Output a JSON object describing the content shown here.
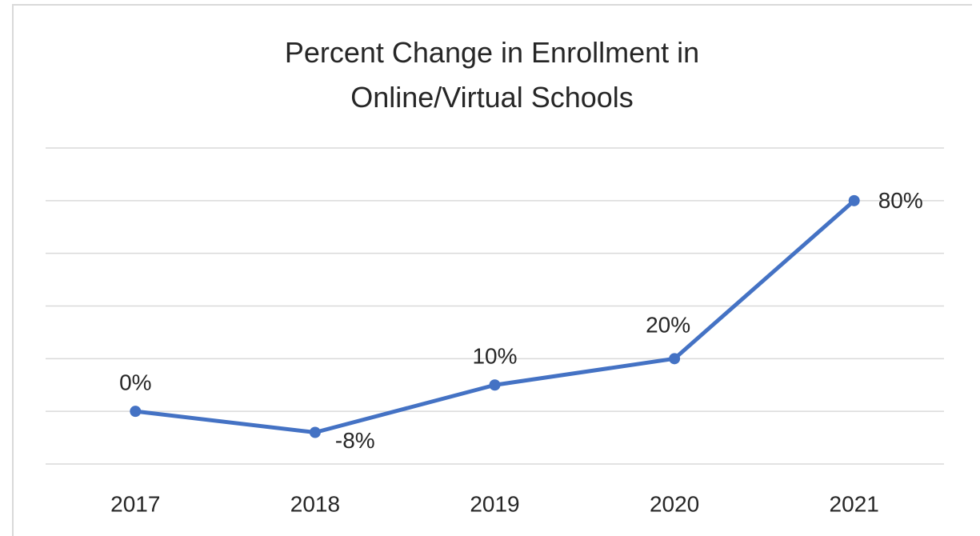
{
  "chart_data": {
    "type": "line",
    "title": "Percent Change in Enrollment in Online/Virtual Schools",
    "categories": [
      "2017",
      "2018",
      "2019",
      "2020",
      "2021"
    ],
    "values": [
      0,
      -8,
      10,
      20,
      80
    ],
    "value_labels": [
      "0%",
      "-8%",
      "10%",
      "20%",
      "80%"
    ],
    "color": "#4472c4",
    "ylim": [
      -20,
      100
    ],
    "yticks": [
      -20,
      0,
      20,
      40,
      60,
      80,
      100
    ],
    "grid": true
  }
}
